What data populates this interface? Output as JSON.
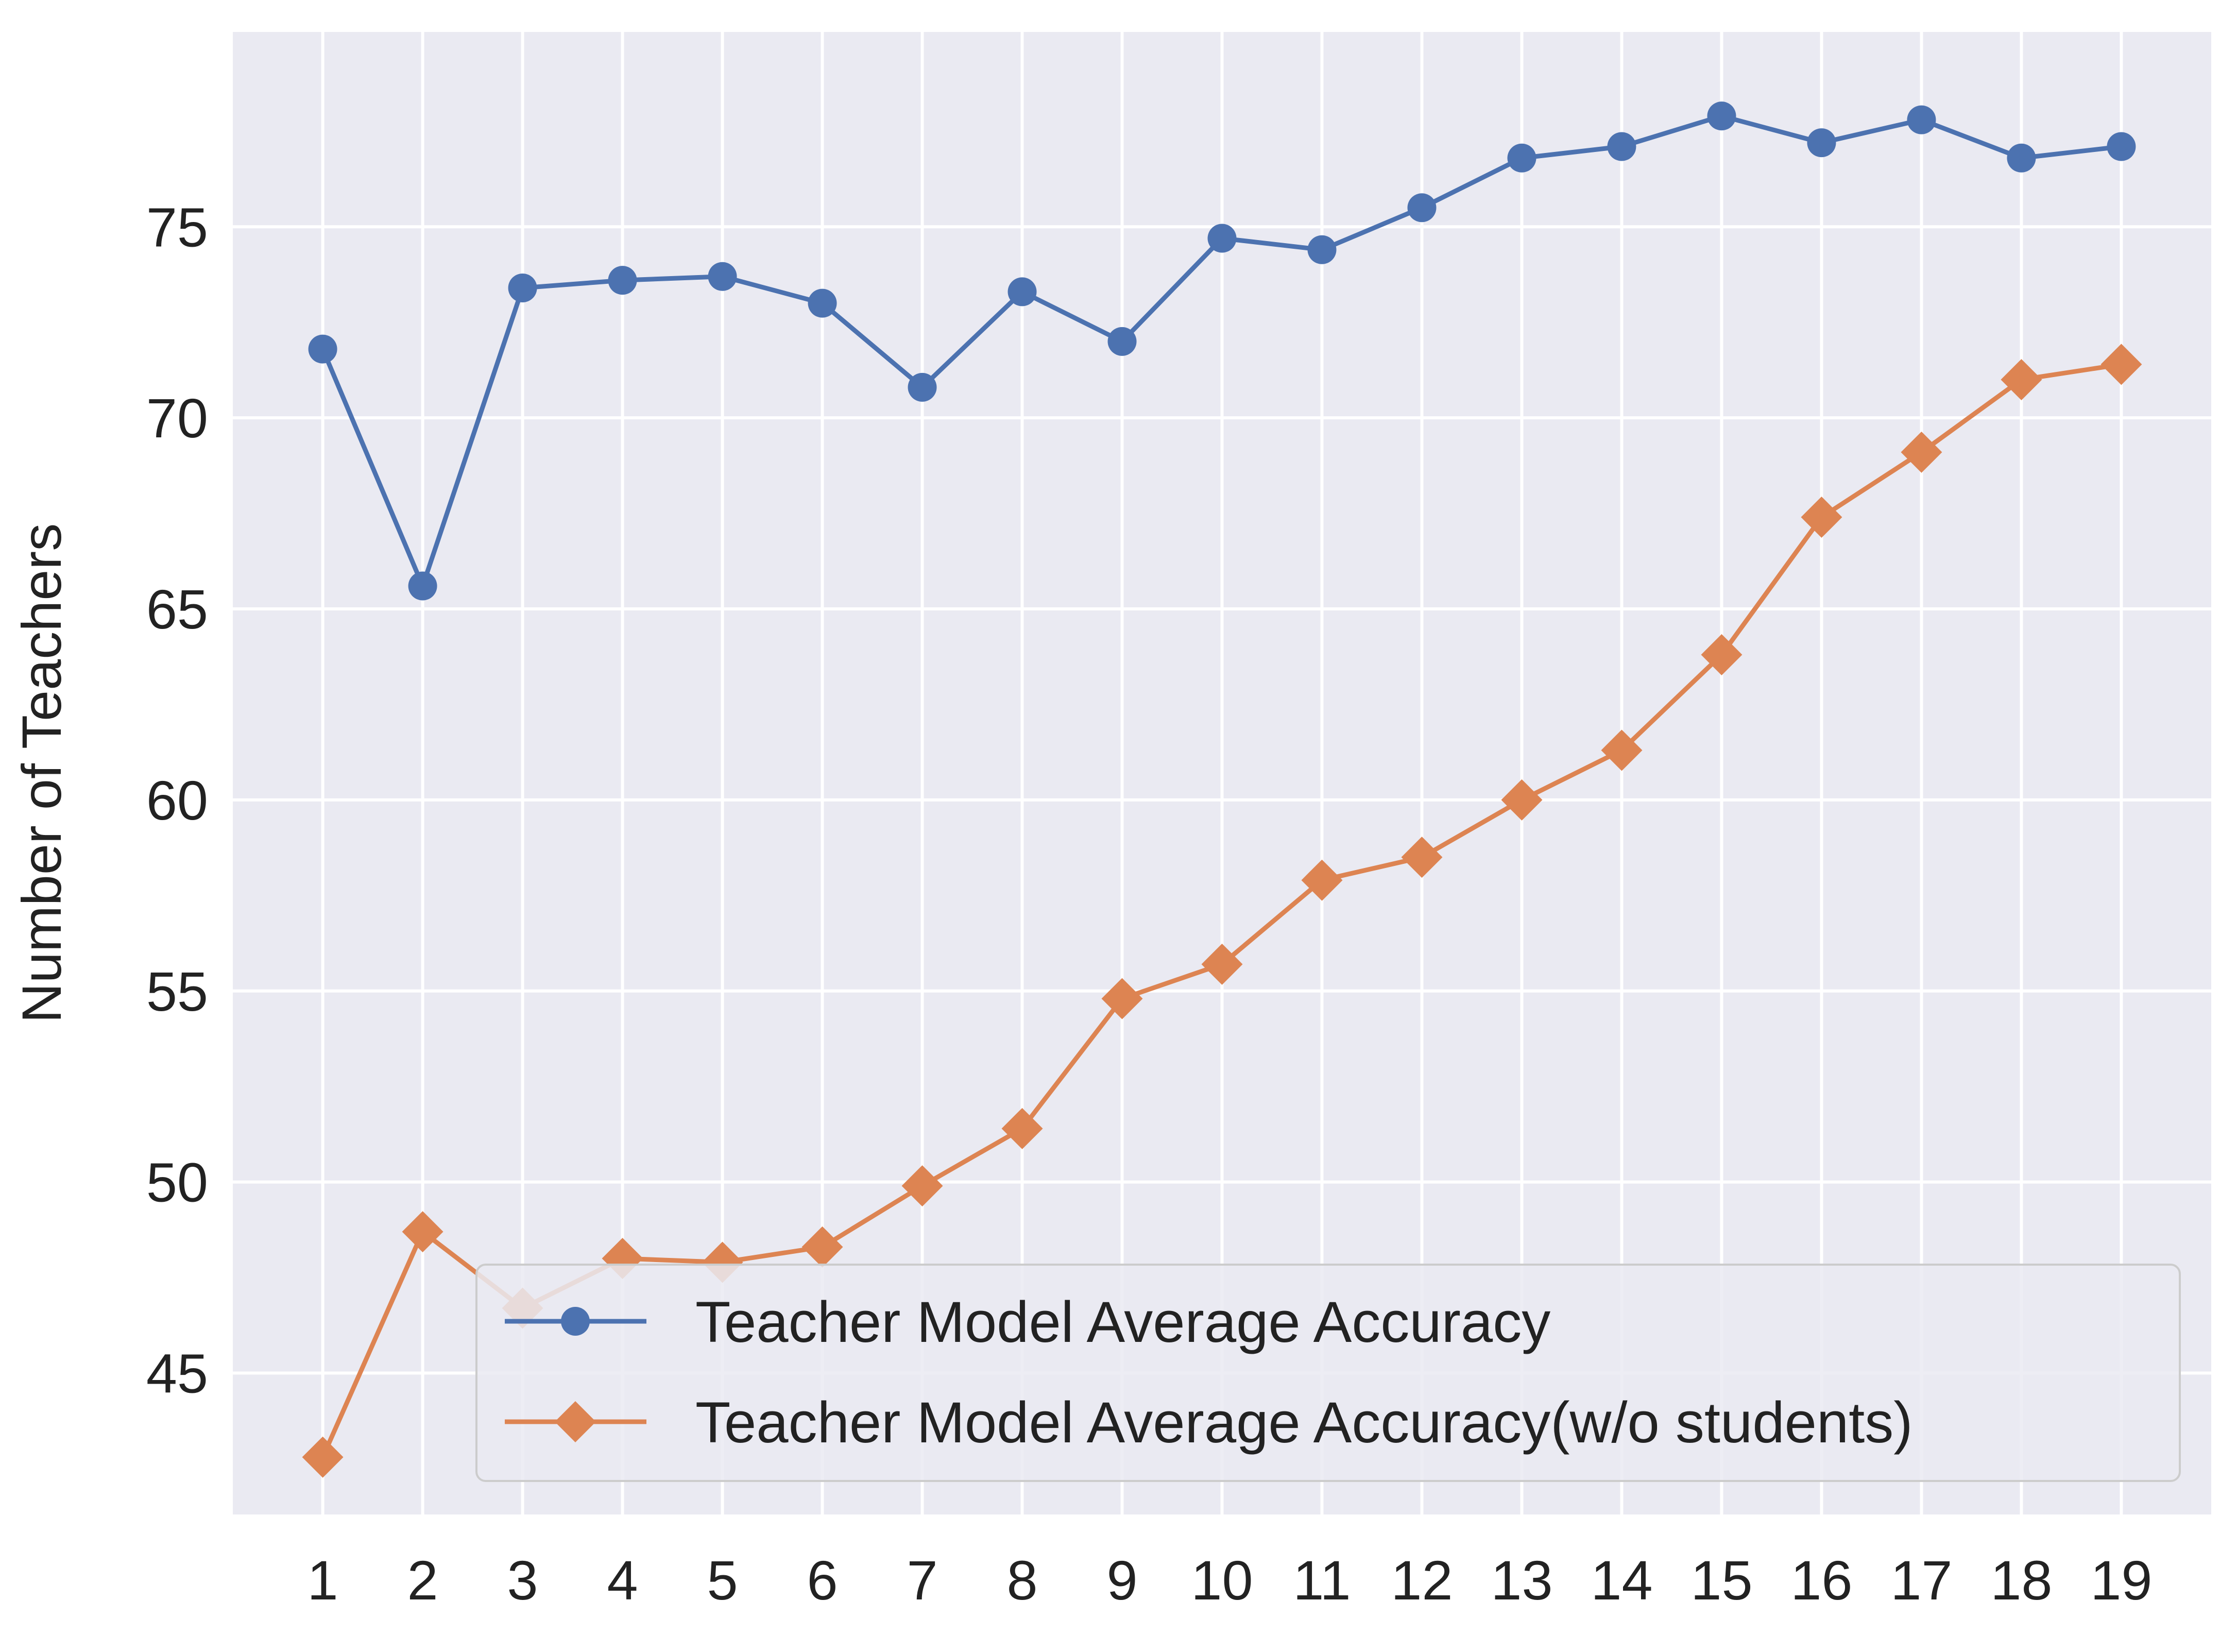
{
  "chart_data": {
    "type": "line",
    "title": "",
    "xlabel": "",
    "ylabel": "Number of Teachers",
    "x": [
      1,
      2,
      3,
      4,
      5,
      6,
      7,
      8,
      9,
      10,
      11,
      12,
      13,
      14,
      15,
      16,
      17,
      18,
      19
    ],
    "xlim": [
      0.1,
      19.9
    ],
    "ylim": [
      41.3,
      80.1
    ],
    "yticks": [
      45,
      50,
      55,
      60,
      65,
      70,
      75
    ],
    "grid": true,
    "legend_position": "lower-right",
    "series": [
      {
        "name": "Teacher Model Average Accuracy",
        "marker": "circle",
        "color": "#4c72b0",
        "values": [
          71.8,
          65.6,
          73.4,
          73.6,
          73.7,
          73.0,
          70.8,
          73.3,
          72.0,
          74.7,
          74.4,
          75.5,
          76.8,
          77.1,
          77.9,
          77.2,
          77.8,
          76.8,
          77.1
        ]
      },
      {
        "name": "Teacher Model Average Accuracy(w/o students)",
        "marker": "diamond",
        "color": "#dd8452",
        "values": [
          42.8,
          48.7,
          46.7,
          48.0,
          47.9,
          48.3,
          49.9,
          51.4,
          54.8,
          55.7,
          57.9,
          58.5,
          60.0,
          61.3,
          63.8,
          67.4,
          69.1,
          71.0,
          71.4
        ]
      }
    ]
  }
}
